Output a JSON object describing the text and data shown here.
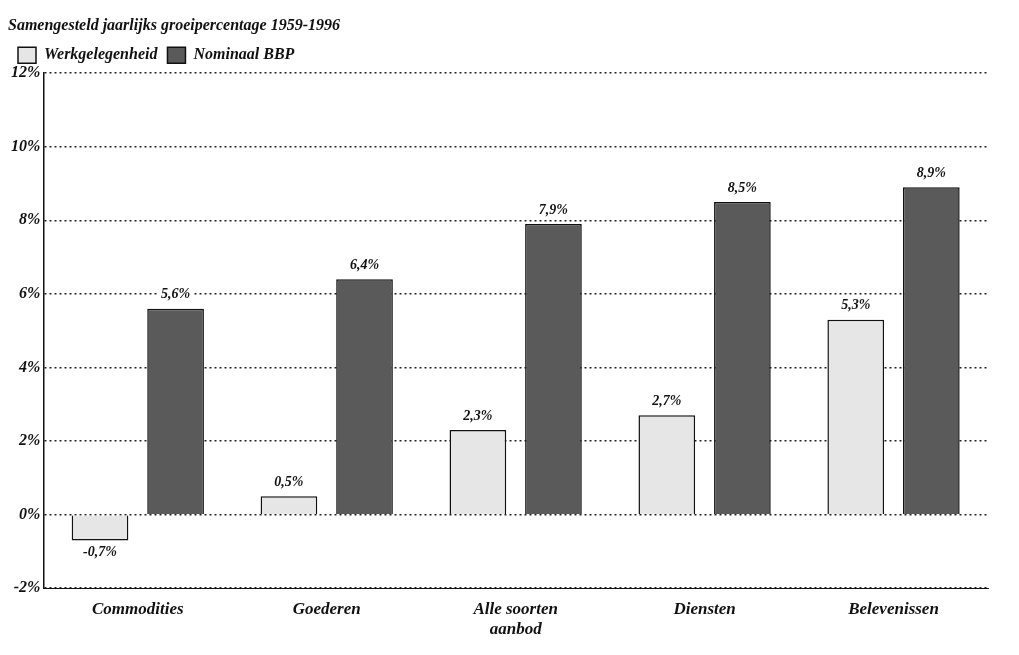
{
  "chart_data": {
    "type": "bar",
    "legend_title": "Samengesteld jaarlijks groeipercentage 1959-1996",
    "categories": [
      "Commodities",
      "Goederen",
      "Alle soorten aanbod",
      "Diensten",
      "Belevenissen"
    ],
    "series": [
      {
        "name": "Werkgelegenheid",
        "color": "#e6e6e6",
        "values": [
          -0.7,
          0.5,
          2.3,
          2.7,
          5.3
        ],
        "value_labels": [
          "-0,7%",
          "0,5%",
          "2,3%",
          "2,7%",
          "5,3%"
        ]
      },
      {
        "name": "Nominaal BBP",
        "color": "#5a5a5a",
        "values": [
          5.6,
          6.4,
          7.9,
          8.5,
          8.9
        ],
        "value_labels": [
          "5,6%",
          "6,4%",
          "7,9%",
          "8,5%",
          "8,9%"
        ]
      }
    ],
    "ylim": [
      -2,
      12
    ],
    "yticks": [
      {
        "value": -2,
        "label": "-2%"
      },
      {
        "value": 0,
        "label": "0%"
      },
      {
        "value": 2,
        "label": "2%"
      },
      {
        "value": 4,
        "label": "4%"
      },
      {
        "value": 6,
        "label": "6%"
      },
      {
        "value": 8,
        "label": "8%"
      },
      {
        "value": 10,
        "label": "10%"
      },
      {
        "value": 12,
        "label": "12%"
      }
    ],
    "grid": "y",
    "legend": "top left"
  }
}
